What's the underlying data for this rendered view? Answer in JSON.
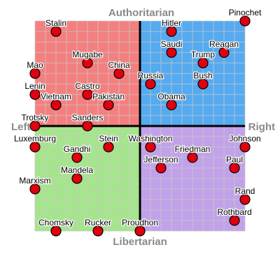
{
  "axes": {
    "top": "Authoritarian",
    "bottom": "Libertarian",
    "left": "Left",
    "right": "Right"
  },
  "colors": {
    "authoritarian_left": "#f47f7f",
    "authoritarian_right": "#55aaf0",
    "libertarian_left": "#a5e58c",
    "libertarian_right": "#c1a2e8",
    "point": "#e0000f"
  },
  "chart_data": {
    "type": "scatter",
    "xlim": [
      -10,
      10
    ],
    "ylim": [
      -10,
      10
    ],
    "grid": true,
    "points": [
      {
        "label": "Stalin",
        "x": -8,
        "y": 9
      },
      {
        "label": "Hitler",
        "x": 3,
        "y": 9
      },
      {
        "label": "Pinochet",
        "x": 10,
        "y": 10
      },
      {
        "label": "Mugabe",
        "x": -5,
        "y": 6
      },
      {
        "label": "Saudi",
        "x": 3,
        "y": 7
      },
      {
        "label": "Trump",
        "x": 6,
        "y": 6
      },
      {
        "label": "Reagan",
        "x": 8,
        "y": 7
      },
      {
        "label": "Mao",
        "x": -10,
        "y": 5
      },
      {
        "label": "China",
        "x": -2,
        "y": 5
      },
      {
        "label": "Russia",
        "x": 1,
        "y": 4
      },
      {
        "label": "Bush",
        "x": 6,
        "y": 4
      },
      {
        "label": "Lenin",
        "x": -10,
        "y": 3
      },
      {
        "label": "Castro",
        "x": -5,
        "y": 3
      },
      {
        "label": "Vietnam",
        "x": -8,
        "y": 2
      },
      {
        "label": "Pakistan",
        "x": -3,
        "y": 2
      },
      {
        "label": "Obama",
        "x": 3,
        "y": 2
      },
      {
        "label": "Trotsky",
        "x": -10,
        "y": 0
      },
      {
        "label": "Sanders",
        "x": -5,
        "y": 0
      },
      {
        "label": "Luxemburg",
        "x": -10,
        "y": -2
      },
      {
        "label": "Stein",
        "x": -3,
        "y": -2
      },
      {
        "label": "Washington",
        "x": 1,
        "y": -2
      },
      {
        "label": "Johnson",
        "x": 10,
        "y": -2
      },
      {
        "label": "Gandhi",
        "x": -6,
        "y": -3
      },
      {
        "label": "Friedman",
        "x": 5,
        "y": -3
      },
      {
        "label": "Jefferson",
        "x": 2,
        "y": -4
      },
      {
        "label": "Paul",
        "x": 9,
        "y": -4
      },
      {
        "label": "Mandela",
        "x": -6,
        "y": -5
      },
      {
        "label": "Marxism",
        "x": -10,
        "y": -6
      },
      {
        "label": "Rand",
        "x": 10,
        "y": -7
      },
      {
        "label": "Rothbard",
        "x": 9,
        "y": -9
      },
      {
        "label": "Chomsky",
        "x": -8,
        "y": -10
      },
      {
        "label": "Rucker",
        "x": -4,
        "y": -10
      },
      {
        "label": "Proudhon",
        "x": 0,
        "y": -10
      }
    ]
  }
}
